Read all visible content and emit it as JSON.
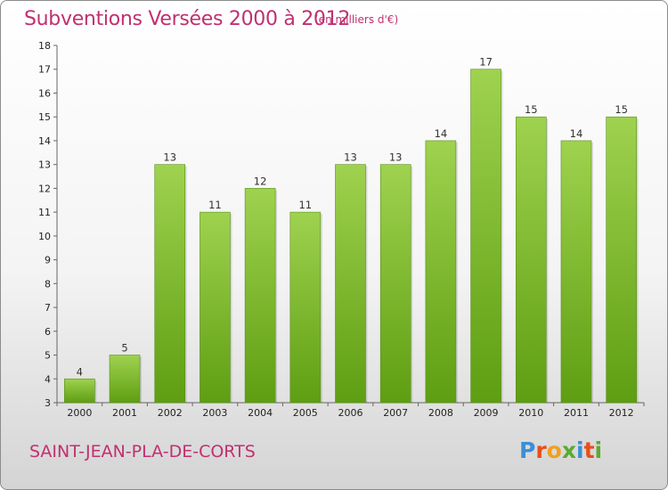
{
  "header": {
    "title": "Subventions Versées 2000 à 2012",
    "unit": "(en milliers d'€)"
  },
  "footer": {
    "commune": "SAINT-JEAN-PLA-DE-CORTS",
    "logo_text": "Proxiti"
  },
  "chart_data": {
    "type": "bar",
    "title": "Subventions Versées 2000 à 2012",
    "subtitle": "(en milliers d'€)",
    "xlabel": "",
    "ylabel": "",
    "categories": [
      "2000",
      "2001",
      "2002",
      "2003",
      "2004",
      "2005",
      "2006",
      "2007",
      "2008",
      "2009",
      "2010",
      "2011",
      "2012"
    ],
    "values": [
      4,
      5,
      13,
      11,
      12,
      11,
      13,
      13,
      14,
      17,
      15,
      14,
      15
    ],
    "ylim": [
      3,
      18
    ],
    "yticks": [
      3,
      4,
      5,
      6,
      7,
      8,
      9,
      10,
      11,
      12,
      13,
      14,
      15,
      16,
      17,
      18
    ],
    "grid": false,
    "colors": {
      "bar_light": "#9fd24f",
      "bar_dark": "#5e9e12",
      "accent": "#c03070"
    }
  },
  "colors": {
    "logo_letters": [
      "#3a8fd6",
      "#e94e1b",
      "#f0a01e",
      "#5aab2e",
      "#3a8fd6",
      "#e94e1b",
      "#5aab2e"
    ]
  }
}
